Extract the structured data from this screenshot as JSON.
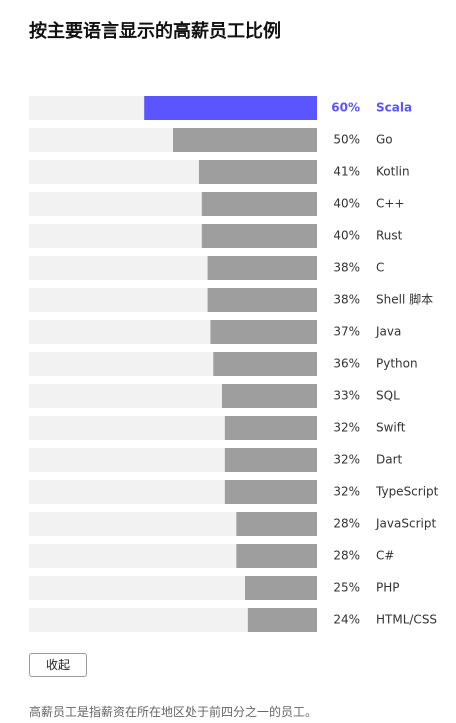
{
  "chart_data": {
    "type": "bar",
    "title": "按主要语言显示的高薪员工比例",
    "categories": [
      "Scala",
      "Go",
      "Kotlin",
      "C++",
      "Rust",
      "C",
      "Shell 脚本",
      "Java",
      "Python",
      "SQL",
      "Swift",
      "Dart",
      "TypeScript",
      "JavaScript",
      "C#",
      "PHP",
      "HTML/CSS"
    ],
    "values": [
      60,
      50,
      41,
      40,
      40,
      38,
      38,
      37,
      36,
      33,
      32,
      32,
      32,
      28,
      28,
      25,
      24
    ],
    "value_labels": [
      "60%",
      "50%",
      "41%",
      "40%",
      "40%",
      "38%",
      "38%",
      "37%",
      "36%",
      "33%",
      "32%",
      "32%",
      "32%",
      "28%",
      "28%",
      "25%",
      "24%"
    ],
    "color": "#9e9e9e",
    "colors": [
      "#5b55ff",
      "#9e9e9e",
      "#9e9e9e",
      "#9e9e9e",
      "#9e9e9e",
      "#9e9e9e",
      "#9e9e9e",
      "#9e9e9e",
      "#9e9e9e",
      "#9e9e9e",
      "#9e9e9e",
      "#9e9e9e",
      "#9e9e9e",
      "#9e9e9e",
      "#9e9e9e",
      "#9e9e9e",
      "#9e9e9e"
    ],
    "xlim": [
      0,
      100
    ]
  },
  "button": "收起",
  "footnote": "高薪员工是指薪资在所在地区处于前四分之一的员工。"
}
